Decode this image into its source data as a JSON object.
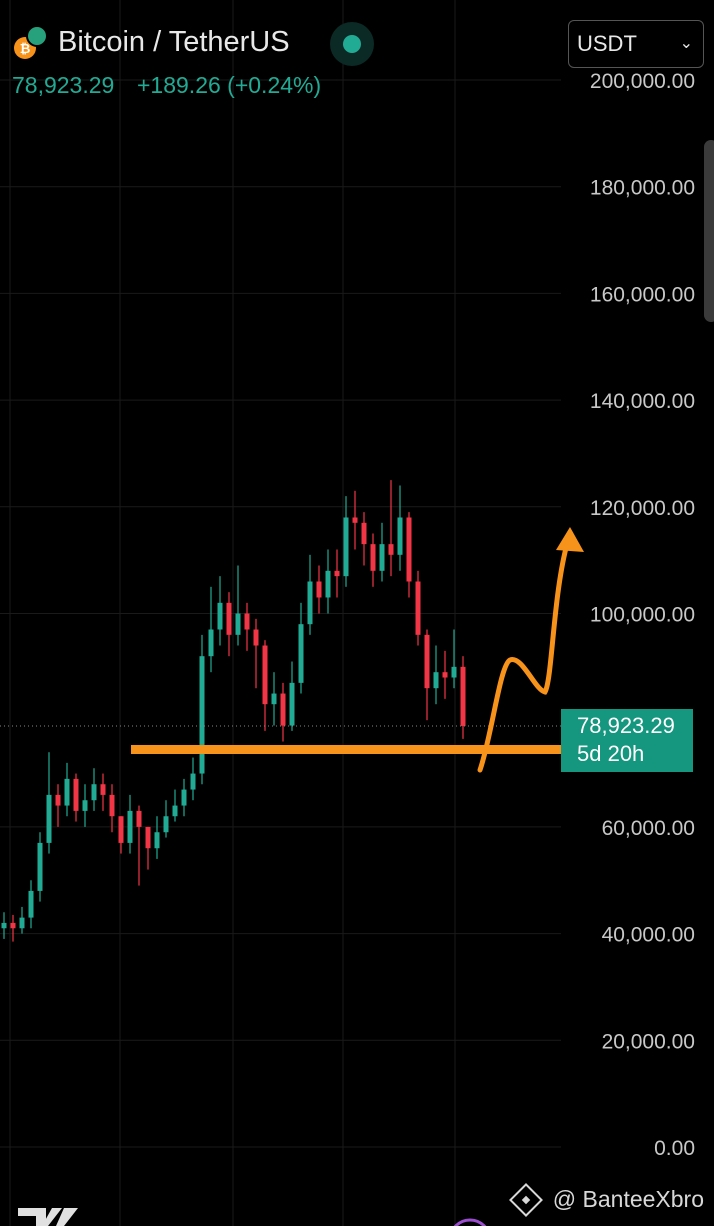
{
  "header": {
    "title": "Bitcoin / TetherUS",
    "price": "78,923.29",
    "change": "+189.26 (+0.24%)"
  },
  "currency": "USDT",
  "watermark": "@ BanteeXbro",
  "price_label": {
    "price": "78,923.29",
    "countdown": "5d 20h"
  },
  "chart_data": {
    "type": "candlestick",
    "up_color": "#22ab94",
    "down_color": "#f23645",
    "grid": true,
    "ylim": [
      0,
      200000
    ],
    "yticks": [
      {
        "value": 0,
        "label": "0.00"
      },
      {
        "value": 20000,
        "label": "20,000.00"
      },
      {
        "value": 40000,
        "label": "40,000.00"
      },
      {
        "value": 60000,
        "label": "60,000.00"
      },
      {
        "value": 100000,
        "label": "100,000.00"
      },
      {
        "value": 120000,
        "label": "120,000.00"
      },
      {
        "value": 140000,
        "label": "140,000.00"
      },
      {
        "value": 160000,
        "label": "160,000.00"
      },
      {
        "value": 180000,
        "label": "180,000.00"
      },
      {
        "value": 200000,
        "label": "200,000.00"
      }
    ],
    "open": [
      41000,
      42000,
      41000,
      43000,
      48000,
      57000,
      66000,
      64000,
      69000,
      63000,
      65000,
      68000,
      66000,
      62000,
      57000,
      63000,
      60000,
      56000,
      59000,
      62000,
      64000,
      67000,
      70000,
      92000,
      97000,
      102000,
      96000,
      100000,
      97000,
      94000,
      83000,
      85000,
      79000,
      87000,
      98000,
      106000,
      103000,
      108000,
      107000,
      118000,
      117000,
      113000,
      108000,
      113000,
      111000,
      118000,
      106000,
      96000,
      86000,
      89000,
      88000,
      90000
    ],
    "high": [
      44000,
      43500,
      45000,
      50000,
      59000,
      74000,
      68000,
      72000,
      70000,
      68000,
      71000,
      70000,
      68000,
      62000,
      66000,
      64000,
      60000,
      62000,
      65000,
      67000,
      69000,
      73000,
      96000,
      105000,
      107000,
      104000,
      109000,
      102000,
      99000,
      95000,
      89000,
      87000,
      91000,
      102000,
      111000,
      109000,
      112000,
      112000,
      122000,
      123000,
      119000,
      115000,
      117000,
      125000,
      124000,
      119000,
      108000,
      97000,
      94000,
      93000,
      97000,
      92000
    ],
    "low": [
      39000,
      38500,
      40000,
      41000,
      46000,
      55000,
      60000,
      62000,
      61000,
      60000,
      63000,
      63000,
      59000,
      55000,
      55000,
      49000,
      52000,
      54000,
      58000,
      61000,
      62000,
      65000,
      68000,
      89000,
      94000,
      92000,
      94000,
      93000,
      86000,
      78000,
      79000,
      76000,
      78000,
      85000,
      96000,
      100000,
      100000,
      103000,
      105000,
      112000,
      109000,
      105000,
      106000,
      107000,
      108000,
      103000,
      94000,
      80000,
      83000,
      84000,
      86000,
      76500
    ],
    "close": [
      42000,
      41000,
      43000,
      48000,
      57000,
      66000,
      64000,
      69000,
      63000,
      65000,
      68000,
      66000,
      62000,
      57000,
      63000,
      60000,
      56000,
      59000,
      62000,
      64000,
      67000,
      70000,
      92000,
      97000,
      102000,
      96000,
      100000,
      97000,
      94000,
      83000,
      85000,
      79000,
      87000,
      98000,
      106000,
      103000,
      108000,
      107000,
      118000,
      117000,
      113000,
      108000,
      113000,
      111000,
      118000,
      106000,
      96000,
      86000,
      89000,
      88000,
      90000,
      78923.29
    ]
  }
}
